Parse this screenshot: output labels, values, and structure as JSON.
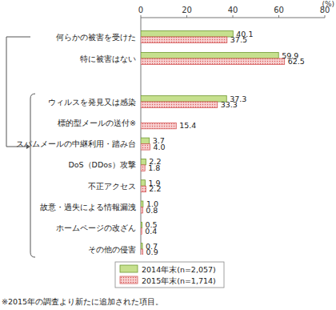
{
  "chart_data": {
    "type": "bar",
    "orientation": "horizontal",
    "x_label": "(%)",
    "categories": [
      "何らかの被害を受けた",
      "特に被害はない",
      "ウィルスを発見又は感染",
      "標的型メールの送付※",
      "スパムメールの中継利用・踏み台",
      "DoS（DDos）攻撃",
      "不正アクセス",
      "故意・過失による情報漏洩",
      "ホームページの改ざん",
      "その他の侵害"
    ],
    "series": [
      {
        "name": "2014年末(n=2,057)",
        "color": "#c6e08e",
        "values": [
          40.1,
          59.9,
          37.3,
          null,
          3.7,
          2.2,
          1.9,
          1.0,
          0.5,
          0.7
        ],
        "value_labels": [
          "40.1",
          "59.9",
          "37.3",
          null,
          "3.7",
          "2.2",
          "1.9",
          "1.0",
          "0.5",
          "0.7"
        ]
      },
      {
        "name": "2015年末(n=1,714)",
        "color": "#f7d0d0",
        "values": [
          37.5,
          62.5,
          33.3,
          15.4,
          4.0,
          1.8,
          2.2,
          0.8,
          0.4,
          0.9
        ],
        "value_labels": [
          "37.5",
          "62.5",
          "33.3",
          "15.4",
          "4.0",
          "1.8",
          "2.2",
          "0.8",
          "0.4",
          "0.9"
        ]
      }
    ],
    "xlim": [
      0,
      80
    ],
    "xticks": [
      0,
      20,
      40,
      60,
      80
    ],
    "grid": false,
    "data_labels": true,
    "legend": "bottom",
    "annotations": [
      "※2015年の調査より新たに追加された項目。"
    ]
  }
}
